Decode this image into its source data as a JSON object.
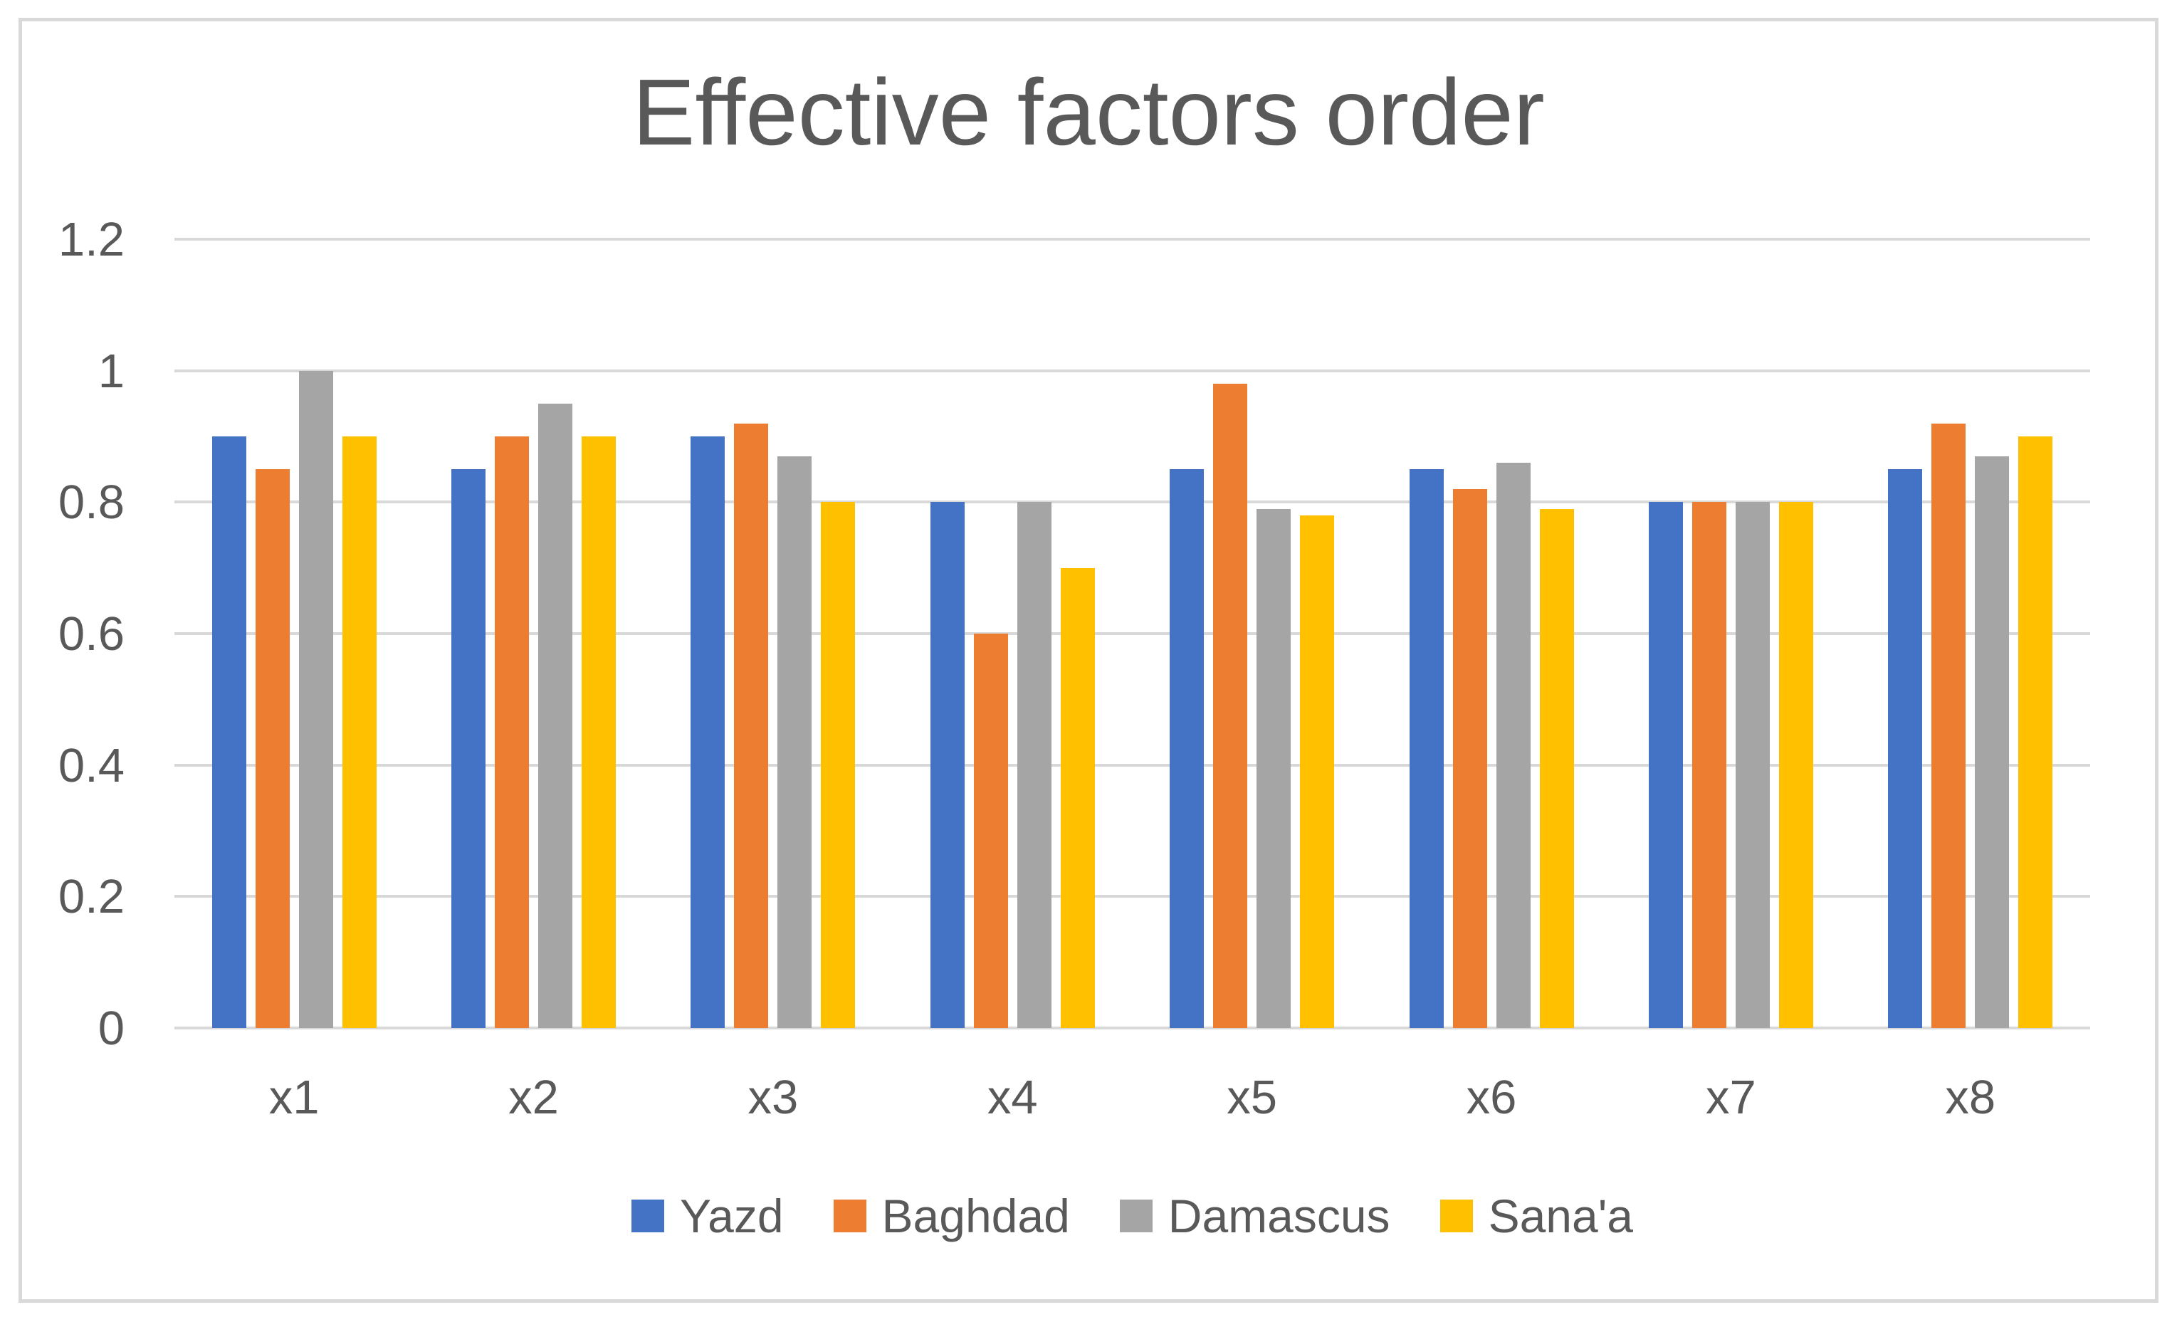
{
  "chart_data": {
    "type": "bar",
    "title": "Effective factors order",
    "categories": [
      "x1",
      "x2",
      "x3",
      "x4",
      "x5",
      "x6",
      "x7",
      "x8"
    ],
    "series": [
      {
        "name": "Yazd",
        "color": "#4472C4",
        "values": [
          0.9,
          0.85,
          0.9,
          0.8,
          0.85,
          0.85,
          0.8,
          0.85
        ]
      },
      {
        "name": "Baghdad",
        "color": "#ED7D31",
        "values": [
          0.85,
          0.9,
          0.92,
          0.6,
          0.98,
          0.82,
          0.8,
          0.92
        ]
      },
      {
        "name": "Damascus",
        "color": "#A5A5A5",
        "values": [
          1.0,
          0.95,
          0.87,
          0.8,
          0.79,
          0.86,
          0.8,
          0.87
        ]
      },
      {
        "name": "Sana'a",
        "color": "#FFC000",
        "values": [
          0.9,
          0.9,
          0.8,
          0.7,
          0.78,
          0.79,
          0.8,
          0.9
        ]
      }
    ],
    "xlabel": "",
    "ylabel": "",
    "ylim": [
      0,
      1.2
    ],
    "yticks": [
      1.2,
      1.0,
      0.8,
      0.6,
      0.4,
      0.2,
      0
    ],
    "ytick_labels": [
      "1.2",
      "1",
      "0.8",
      "0.6",
      "0.4",
      "0.2",
      "0"
    ],
    "grid": true,
    "legend_position": "bottom",
    "text_color": "#595959",
    "gridline_color": "#D9D9D9",
    "frame_border_color": "#D9D9D9"
  }
}
